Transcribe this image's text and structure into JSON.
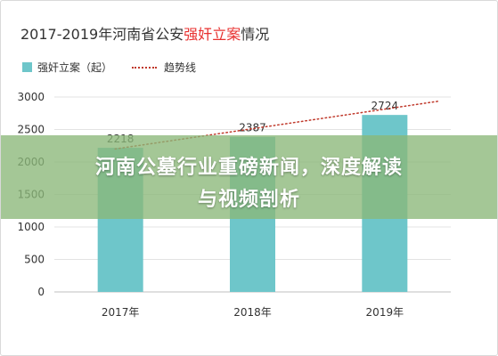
{
  "title": {
    "prefix": "2017-2019年河南省公安",
    "highlight": "强奸立案",
    "suffix": "情况"
  },
  "colors": {
    "bar": "#6ec6ca",
    "trend": "#c0392b",
    "highlight": "#e8312f",
    "banner": "#8bb778"
  },
  "chart_data": {
    "type": "bar",
    "categories": [
      "2017年",
      "2018年",
      "2019年"
    ],
    "series": [
      {
        "name": "强奸立案（起）",
        "values": [
          2218,
          2387,
          2724
        ]
      }
    ],
    "trend": {
      "name": "趋势线",
      "style": "dotted",
      "start": 2200,
      "end": 2935
    },
    "ylim": [
      0,
      3000
    ],
    "yticks": [
      0,
      500,
      1000,
      1500,
      2000,
      2500,
      3000
    ],
    "data_labels": [
      "2218",
      "2387",
      "2724"
    ],
    "grid": true,
    "legend": "top-left"
  },
  "overlay": {
    "line1": "河南公墓行业重磅新闻，深度解读",
    "line2": "与视频剖析"
  }
}
